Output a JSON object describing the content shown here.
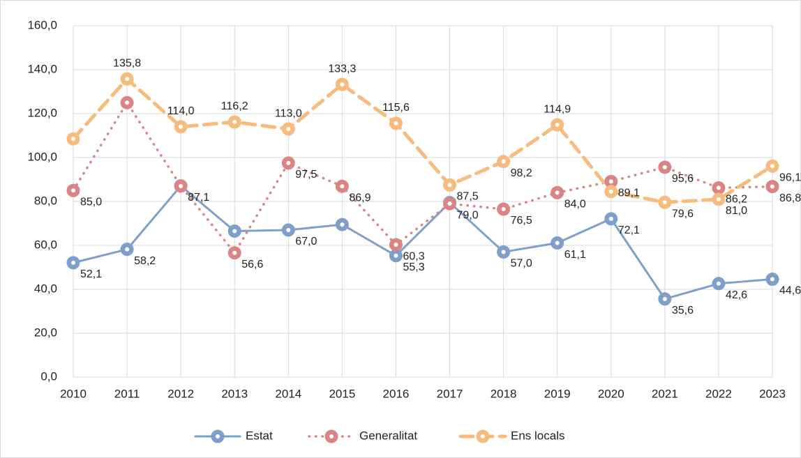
{
  "chart_data": {
    "type": "line",
    "categories": [
      "2010",
      "2011",
      "2012",
      "2013",
      "2014",
      "2015",
      "2016",
      "2017",
      "2018",
      "2019",
      "2020",
      "2021",
      "2022",
      "2023"
    ],
    "series": [
      {
        "name": "Estat",
        "color": "#7f9fcb",
        "label_color": "#4a76b0",
        "dash": "solid",
        "values": [
          52.1,
          58.2,
          87.1,
          66.5,
          67.0,
          69.5,
          55.3,
          79.5,
          57.0,
          61.1,
          72.1,
          35.6,
          42.6,
          44.6
        ],
        "value_labels": [
          "52,1",
          "58,2",
          "87,1",
          null,
          "67,0",
          null,
          "55,3",
          null,
          "57,0",
          "61,1",
          "72,1",
          "35,6",
          "42,6",
          "44,6"
        ]
      },
      {
        "name": "Generalitat",
        "color": "#d98585",
        "label_color": "#b24a47",
        "dash": "dotted",
        "values": [
          85.0,
          125.0,
          87.0,
          56.6,
          97.5,
          86.9,
          60.3,
          79.0,
          76.5,
          84.0,
          89.1,
          95.6,
          86.2,
          86.8
        ],
        "value_labels": [
          "85,0",
          null,
          null,
          "56,6",
          "97,5",
          "86,9",
          "60,3",
          "79,0",
          "76,5",
          "84,0",
          "89,1",
          "95,6",
          "86,2",
          "86,8"
        ]
      },
      {
        "name": "Ens locals",
        "color": "#f7bb7d",
        "label_color": "#f0a050",
        "dash": "dashed",
        "values": [
          108.5,
          135.8,
          114.0,
          116.2,
          113.0,
          133.3,
          115.6,
          87.5,
          98.2,
          114.9,
          84.5,
          79.6,
          81.0,
          96.1
        ],
        "value_labels": [
          null,
          "135,8",
          "114,0",
          "116,2",
          "113,0",
          "133,3",
          "115,6",
          "87,5",
          "98,2",
          "114,9",
          null,
          "79,6",
          "81,0",
          "96,1"
        ]
      }
    ],
    "ylim": [
      0,
      160
    ],
    "yticks": [
      {
        "value": 0,
        "label": "0,0"
      },
      {
        "value": 20,
        "label": "20,0"
      },
      {
        "value": 40,
        "label": "40,0"
      },
      {
        "value": 60,
        "label": "60,0"
      },
      {
        "value": 80,
        "label": "80,0"
      },
      {
        "value": 100,
        "label": "100,0"
      },
      {
        "value": 120,
        "label": "120,0"
      },
      {
        "value": 140,
        "label": "140,0"
      },
      {
        "value": 160,
        "label": "160,0"
      }
    ],
    "grid": true,
    "legend": "bottom"
  }
}
